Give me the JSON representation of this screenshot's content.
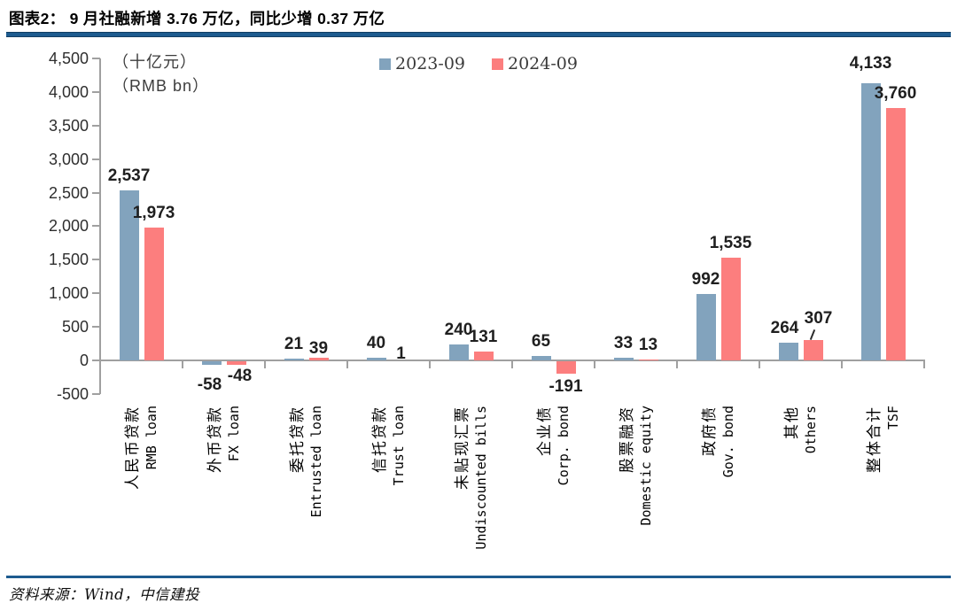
{
  "header": {
    "title": "图表2：  9 月社融新增 3.76 万亿，同比少增 0.37 万亿"
  },
  "footer": {
    "source": "资料来源：Wind，中信建投"
  },
  "chart_data": {
    "type": "bar",
    "title": "9 月社融新增 3.76 万亿，同比少增 0.37 万亿",
    "unit_lines": [
      "（十亿元）",
      "（RMB bn）"
    ],
    "legend": [
      "2023-09",
      "2024-09"
    ],
    "legend_position": "top-center",
    "grid": false,
    "ylim": [
      -500,
      4500
    ],
    "ytick_step": 500,
    "yticks": [
      4500,
      4000,
      3500,
      3000,
      2500,
      2000,
      1500,
      1000,
      500,
      0,
      -500
    ],
    "ytick_labels": [
      "4,500",
      "4,000",
      "3,500",
      "3,000",
      "2,500",
      "2,000",
      "1,500",
      "1,000",
      "500",
      "0",
      "-500"
    ],
    "categories": [
      {
        "zh": "人民币贷款",
        "en": "RMB loan"
      },
      {
        "zh": "外币贷款",
        "en": "FX loan"
      },
      {
        "zh": "委托贷款",
        "en": "Entrusted loan"
      },
      {
        "zh": "信托贷款",
        "en": "Trust loan"
      },
      {
        "zh": "未贴现汇票",
        "en": "Undiscounted bills"
      },
      {
        "zh": "企业债",
        "en": "Corp. bond"
      },
      {
        "zh": "股票融资",
        "en": "Domestic equity"
      },
      {
        "zh": "政府债",
        "en": "Gov. bond"
      },
      {
        "zh": "其他",
        "en": "Others"
      },
      {
        "zh": "整体合计",
        "en": "TSF"
      }
    ],
    "series": [
      {
        "name": "2023-09",
        "values": [
          2537,
          -58,
          21,
          40,
          240,
          65,
          33,
          992,
          264,
          4133
        ]
      },
      {
        "name": "2024-09",
        "values": [
          1973,
          -48,
          39,
          1,
          131,
          -191,
          13,
          1535,
          307,
          3760
        ]
      }
    ],
    "colors": {
      "series0": "#82a3bd",
      "series1": "#fc7e7e",
      "axis": "#a0a0a0",
      "label_text": "#1f1f1f",
      "rule": "#1d5b8f"
    },
    "label_offsets": {
      "s0": {
        "1": [
          -2,
          8
        ],
        "8": [
          -4,
          0
        ],
        "9": [
          0,
          -6
        ]
      },
      "s1": {
        "1": [
          4,
          -2
        ],
        "2": [
          0,
          6
        ],
        "3": [
          0,
          9
        ],
        "8": [
          6,
          -8
        ]
      }
    },
    "leader": {
      "series": 1,
      "index": 8
    }
  }
}
